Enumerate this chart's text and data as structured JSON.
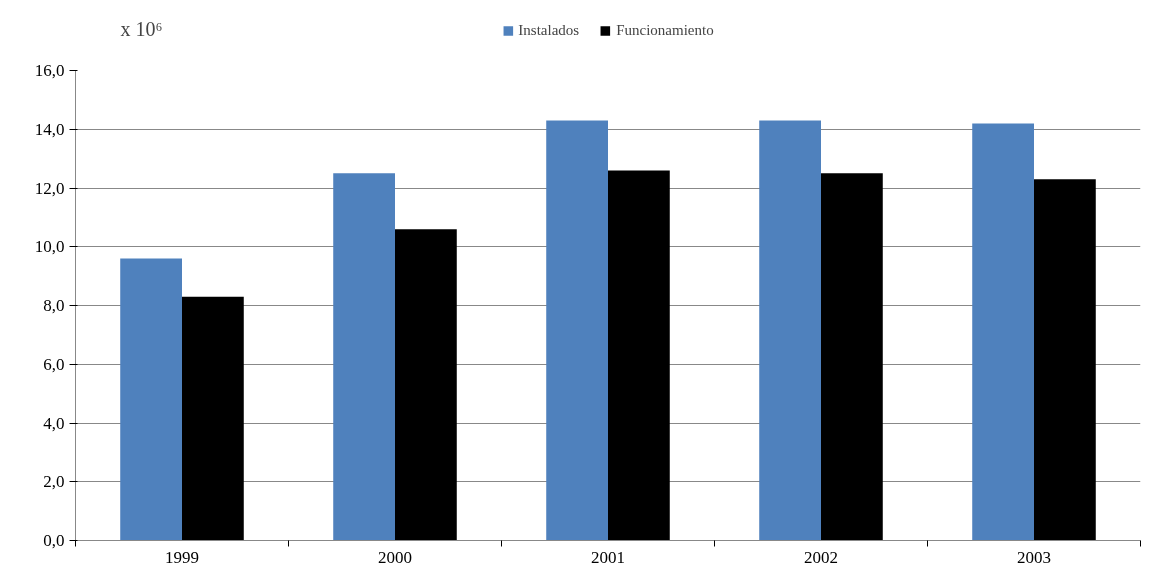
{
  "chart_data": {
    "type": "bar",
    "ylabel": "x 10⁶",
    "categories": [
      "1999",
      "2000",
      "2001",
      "2002",
      "2003"
    ],
    "series": [
      {
        "name": "Instalados",
        "color": "#4f81bd",
        "values": [
          9.6,
          12.5,
          14.3,
          14.3,
          14.2
        ]
      },
      {
        "name": "Funcionamiento",
        "color": "#000000",
        "values": [
          8.3,
          10.6,
          12.6,
          12.5,
          12.3
        ]
      }
    ],
    "ylim": [
      0,
      16
    ],
    "yticks": [
      {
        "value": 0,
        "label": "0,0"
      },
      {
        "value": 2,
        "label": "2,0"
      },
      {
        "value": 4,
        "label": "4,0"
      },
      {
        "value": 6,
        "label": "6,0"
      },
      {
        "value": 8,
        "label": "8,0"
      },
      {
        "value": 10,
        "label": "10,0"
      },
      {
        "value": 12,
        "label": "12,0"
      },
      {
        "value": 14,
        "label": "14,0"
      },
      {
        "value": 16,
        "label": "16,0"
      }
    ],
    "grid": "y",
    "legend": "top"
  }
}
